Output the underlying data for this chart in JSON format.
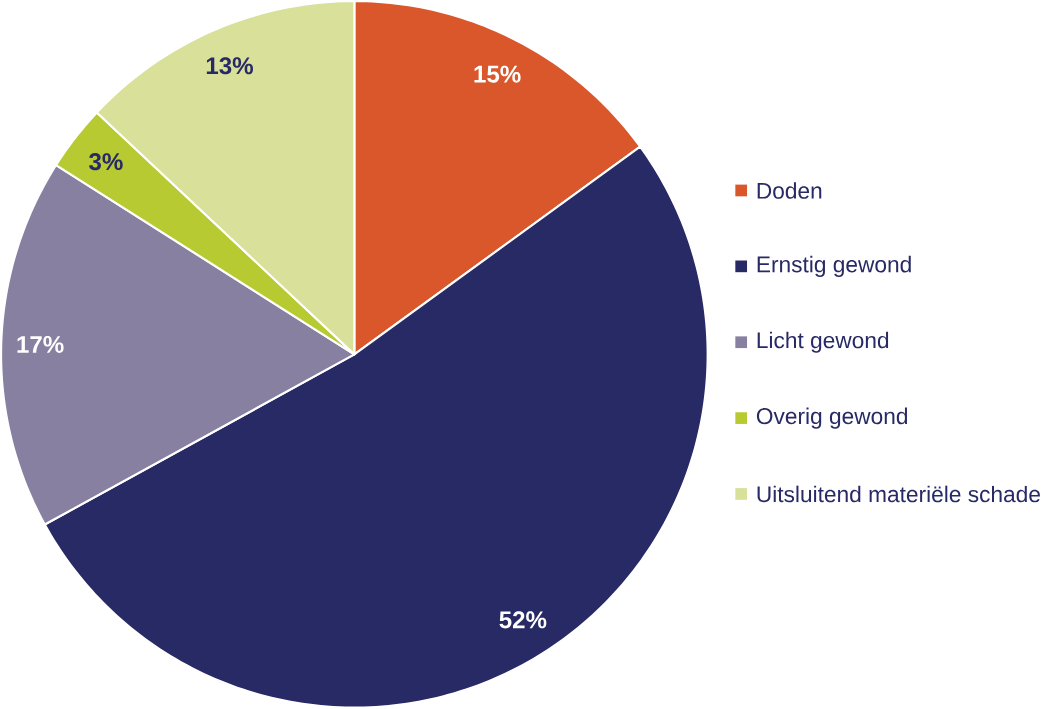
{
  "chart_data": {
    "type": "pie",
    "categories": [
      "Doden",
      "Ernstig gewond",
      "Licht gewond",
      "Overig gewond",
      "Uitsluitend materiële schade"
    ],
    "values": [
      15,
      52,
      17,
      3,
      13
    ],
    "colors": [
      "#d9572b",
      "#282a66",
      "#8780a0",
      "#b8ca32",
      "#d8e09a"
    ],
    "value_labels": [
      "15%",
      "52%",
      "17%",
      "3%",
      "13%"
    ],
    "legend": "right"
  }
}
